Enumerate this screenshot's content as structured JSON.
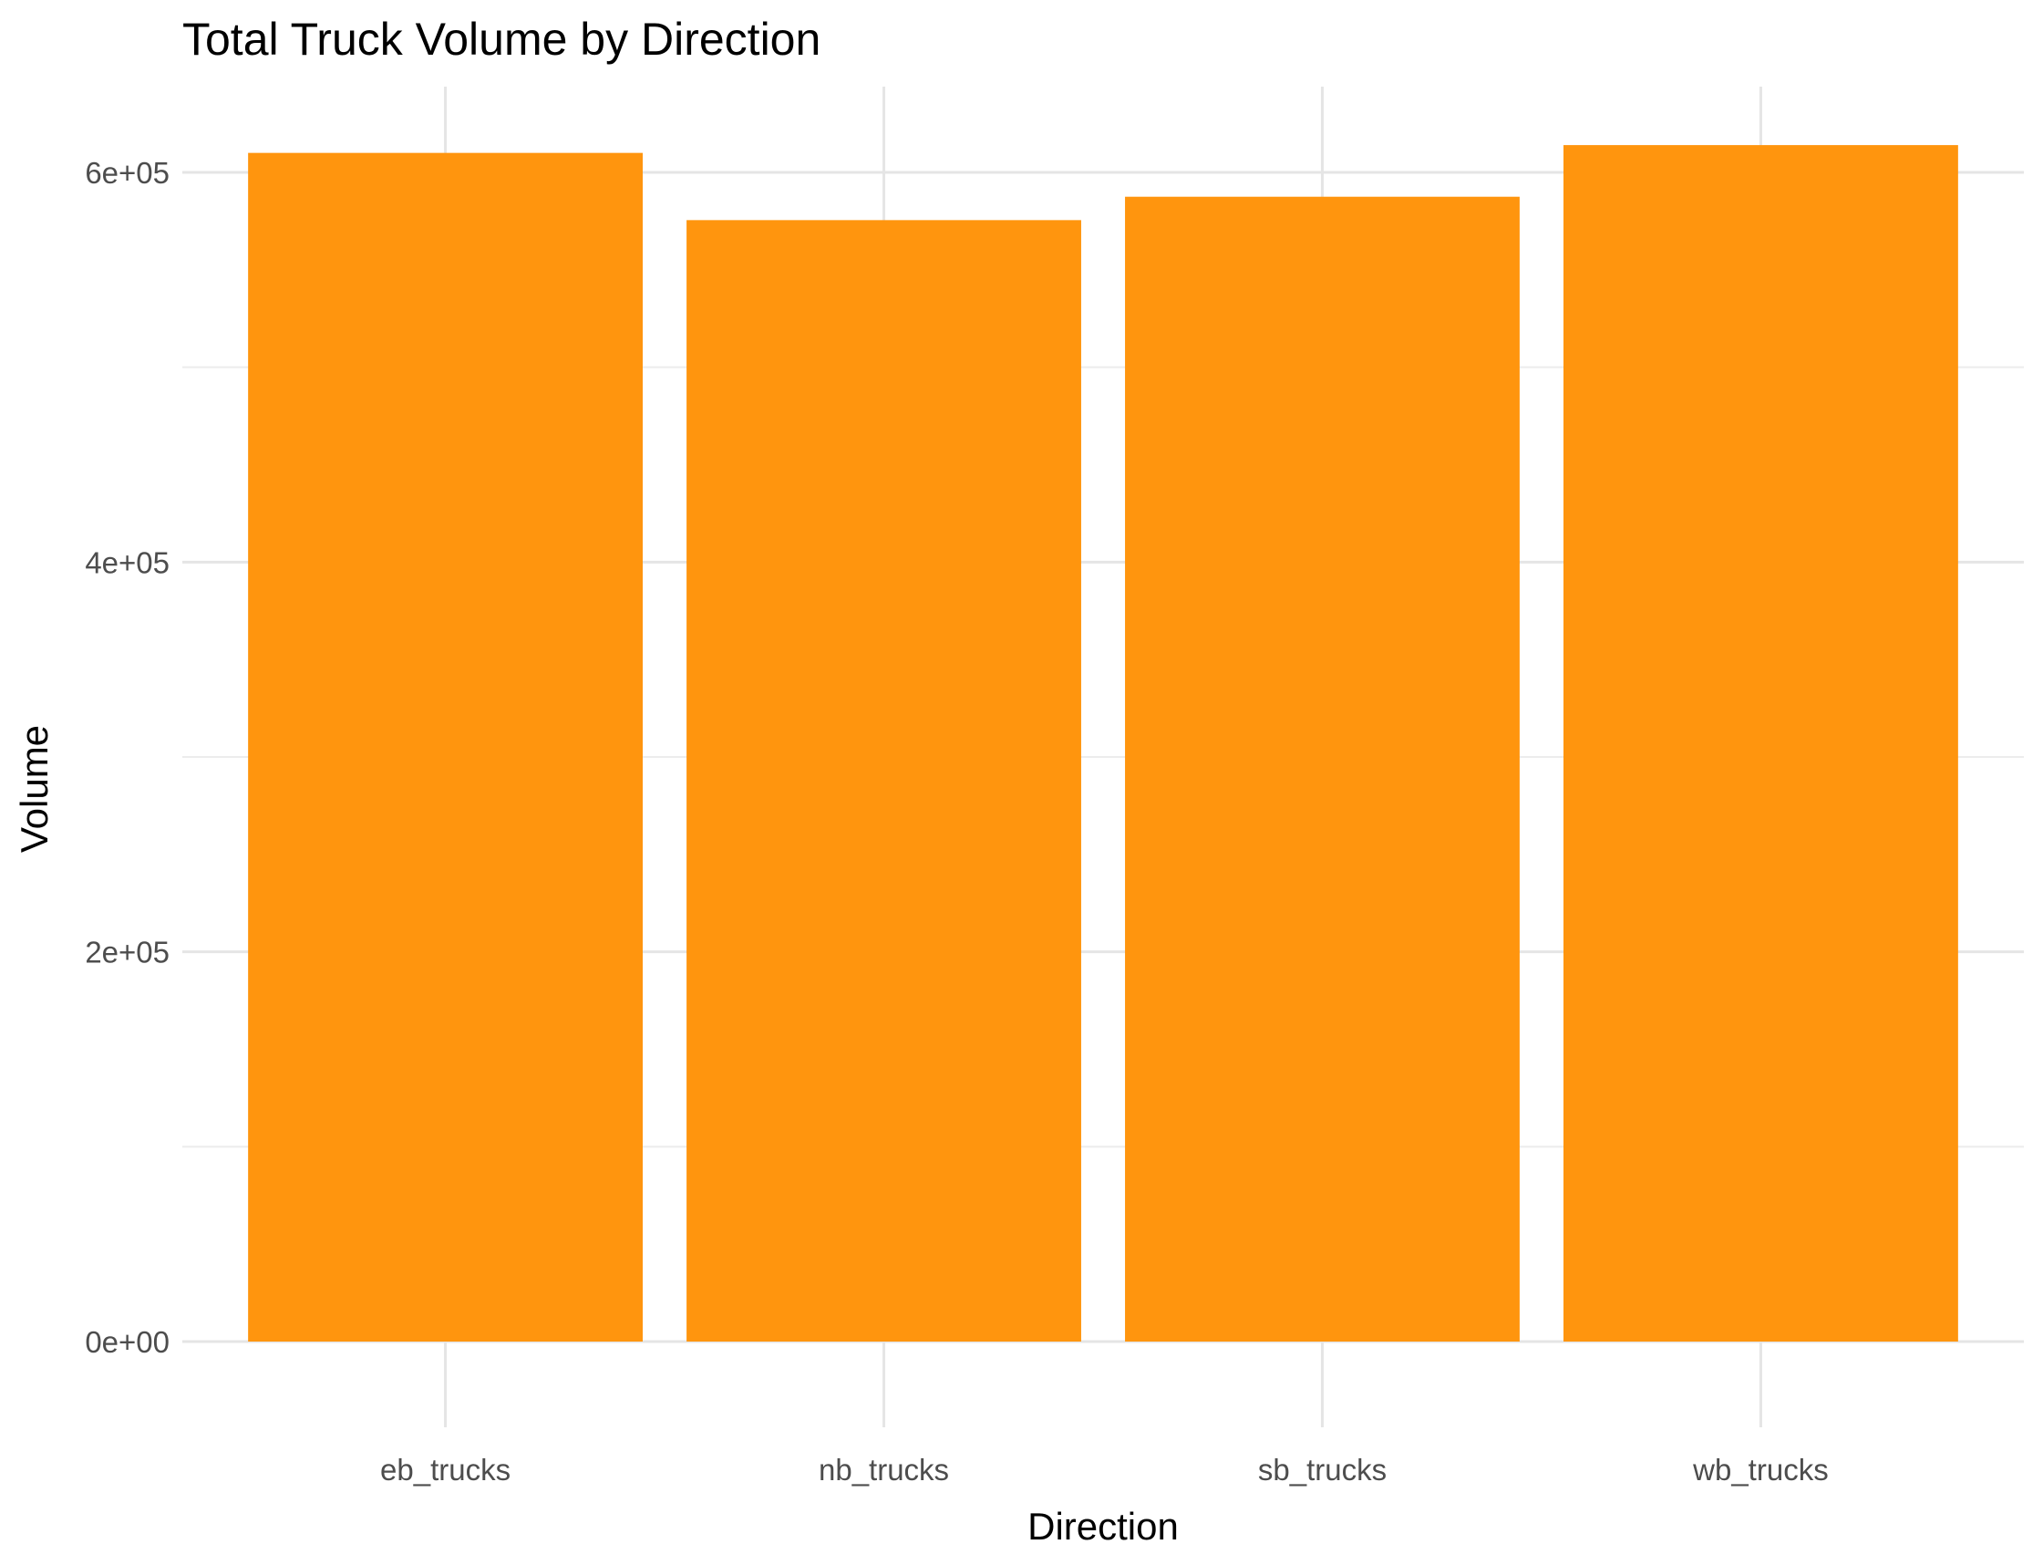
{
  "chart_data": {
    "type": "bar",
    "title": "Total Truck Volume by Direction",
    "xlabel": "Direction",
    "ylabel": "Volume",
    "categories": [
      "eb_trucks",
      "nb_trucks",
      "sb_trucks",
      "wb_trucks"
    ],
    "values": [
      610000,
      575500,
      587500,
      614000
    ],
    "ylim": [
      -44000,
      644000
    ],
    "yticks": [
      0,
      200000,
      400000,
      600000
    ],
    "ytick_labels": [
      "0e+00",
      "2e+05",
      "4e+05",
      "6e+05"
    ],
    "yminor_ticks": [
      100000,
      300000,
      500000
    ],
    "grid": true,
    "legend": "none",
    "bar_color": "#FF950E"
  }
}
